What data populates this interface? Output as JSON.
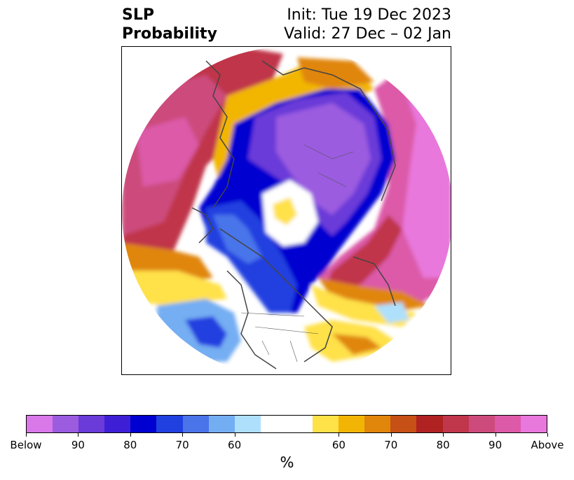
{
  "title": {
    "left_line1": "SLP",
    "left_line2": "Probability",
    "right_line1": "Init: Tue 19 Dec 2023",
    "right_line2": "Valid: 27 Dec – 02 Jan"
  },
  "colorbar": {
    "colors": [
      "#d978e8",
      "#9b5ce0",
      "#6a3bd8",
      "#3e1fd6",
      "#0000d0",
      "#2040e0",
      "#4a74ea",
      "#74aef2",
      "#aee0fc",
      "#ffffff",
      "#ffffff",
      "#ffe148",
      "#f2b505",
      "#e0860b",
      "#c65016",
      "#b02222",
      "#c0364a",
      "#cc4b7c",
      "#dc5aa8",
      "#e878dc"
    ],
    "labels": [
      "Below",
      "90",
      "80",
      "70",
      "60",
      "60",
      "70",
      "80",
      "90",
      "Above"
    ],
    "unit": "%"
  },
  "map": {
    "projection": "north-polar-stereographic",
    "variable": "sea level pressure probability",
    "regions": [
      {
        "name": "arctic-siberia-below",
        "category": "Below"
      },
      {
        "name": "north-america-blue",
        "category": "80"
      },
      {
        "name": "north-pacific-blue",
        "category": "70"
      },
      {
        "name": "atlantic-red",
        "category": "Above"
      },
      {
        "name": "europe-red",
        "category": "90"
      }
    ]
  }
}
